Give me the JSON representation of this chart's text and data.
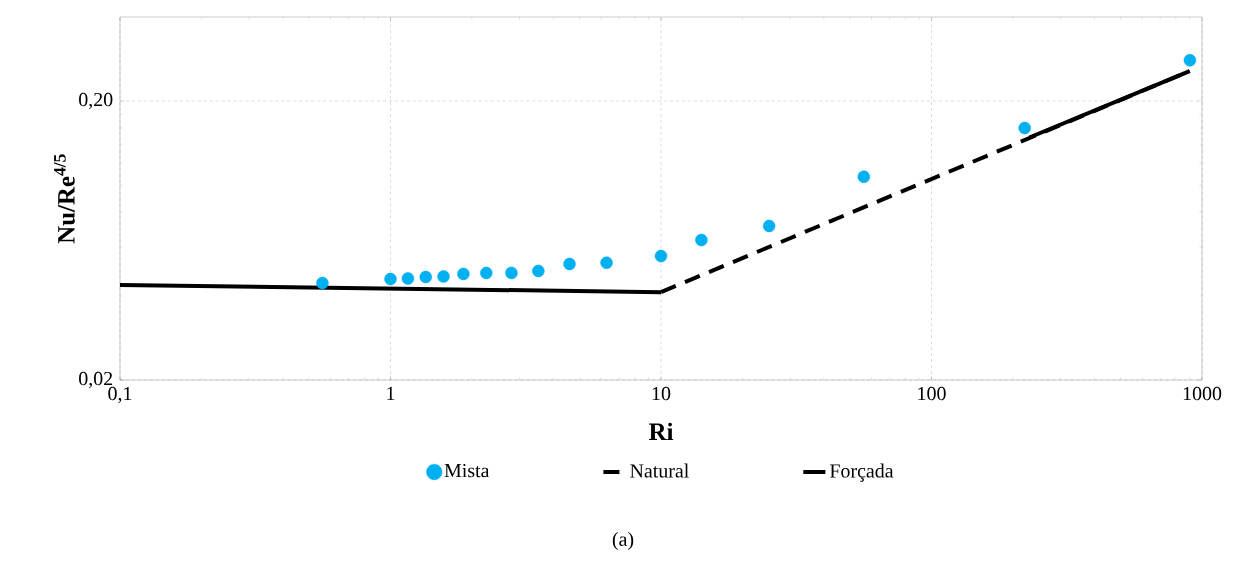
{
  "chart_data": {
    "type": "scatter",
    "xlabel": "Ri",
    "ylabel": "Nu/Re$^{4/5}$",
    "log": "xy",
    "grid": true,
    "legend": "bottom",
    "xlim": [
      0.1,
      1000
    ],
    "ylim": [
      0.02,
      0.4
    ],
    "xticks": [
      {
        "value": 0.1,
        "label": "0,1"
      },
      1,
      10,
      100,
      1000
    ],
    "yticks": [
      {
        "value": 0.02,
        "label": "0,02"
      },
      {
        "value": 0.2,
        "label": "0,20"
      }
    ],
    "series": [
      {
        "name": "Mista",
        "color": "#00b0f0",
        "x": [
          0.56,
          1.0,
          1.16,
          1.35,
          1.57,
          1.86,
          2.26,
          2.8,
          3.52,
          4.59,
          6.29,
          10,
          14.1,
          25.1,
          56.2,
          221,
          902
        ],
        "values": [
          0.0445,
          0.046,
          0.0462,
          0.0468,
          0.047,
          0.048,
          0.0484,
          0.0484,
          0.0492,
          0.0521,
          0.0526,
          0.0556,
          0.0635,
          0.0713,
          0.107,
          0.16,
          0.28
        ]
      },
      {
        "name": "Natural",
        "type": "line",
        "color": "#000000",
        "line_style": "dashed",
        "x": [
          10,
          900
        ],
        "values": [
          0.0413,
          0.256
        ]
      },
      {
        "name": "Forçada",
        "type": "line",
        "color": "#000000",
        "line_style": "solid",
        "x": [
          0.1,
          10,
          100,
          230,
          900
        ],
        "values": [
          0.0438,
          0.0413,
          null,
          0.148,
          0.256
        ]
      }
    ],
    "annotations": [
      "(a)"
    ]
  }
}
